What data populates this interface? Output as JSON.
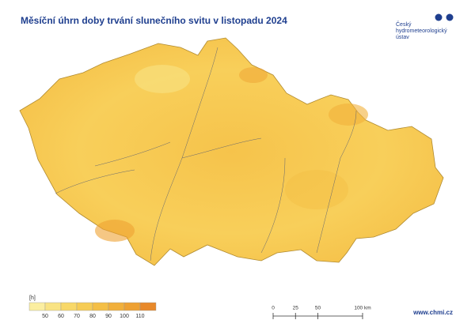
{
  "title": "Měsíční úhrn doby trvání slunečního svitu v listopadu 2024",
  "logo": {
    "lines": [
      "Český",
      "hydrometeorologický",
      "ústav"
    ]
  },
  "legend": {
    "unit": "[h]",
    "ticks": [
      50,
      60,
      70,
      80,
      90,
      100,
      110
    ],
    "colors": [
      "#fbeea0",
      "#f9e383",
      "#f8d868",
      "#f6cc55",
      "#f4bf46",
      "#f1b03b",
      "#eea132",
      "#e8892a"
    ]
  },
  "scale_bar": {
    "ticks": [
      0,
      25,
      50,
      {
        "value": 100,
        "label": "100 km"
      }
    ]
  },
  "footer": "www.chmi.cz"
}
